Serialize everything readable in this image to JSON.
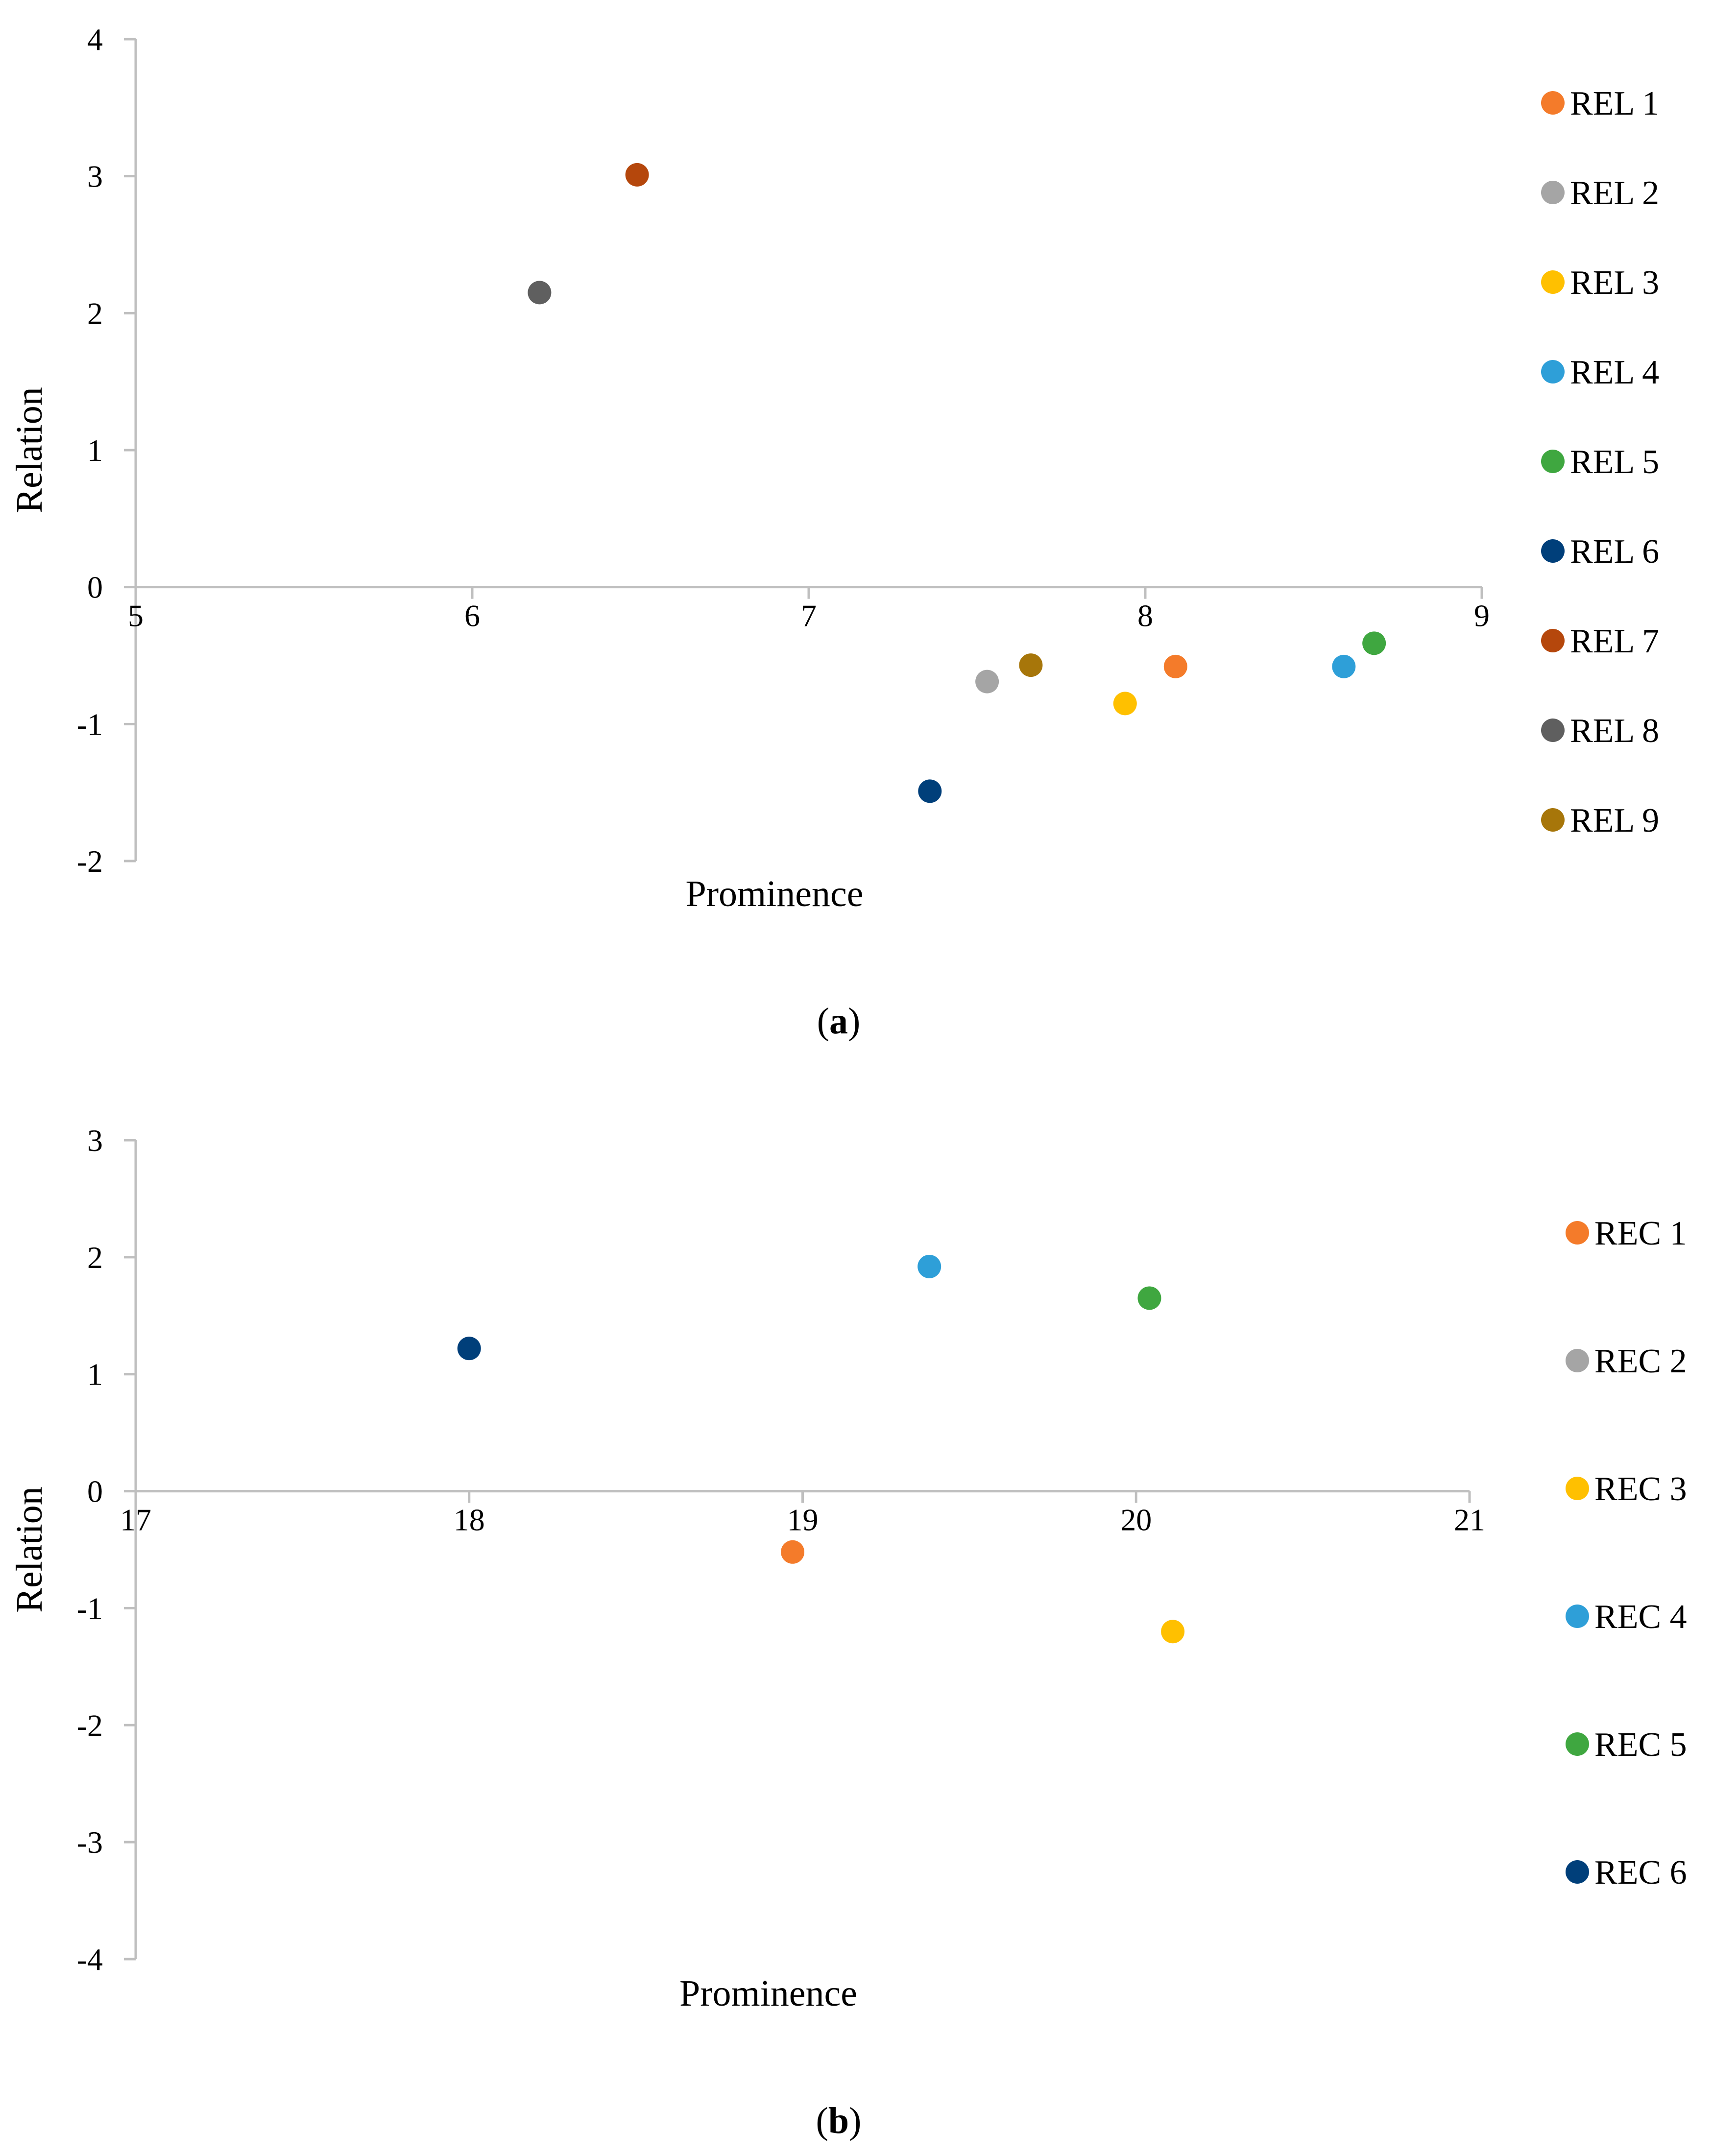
{
  "chart_data": [
    {
      "type": "scatter",
      "panel_label": "a",
      "xlabel": "Prominence",
      "ylabel": "Relation",
      "xlim": [
        5,
        9
      ],
      "ylim": [
        -2,
        4
      ],
      "xticks": [
        5,
        6,
        7,
        8,
        9
      ],
      "yticks": [
        -2,
        -1,
        0,
        1,
        2,
        3,
        4
      ],
      "grid": false,
      "legend_position": "right",
      "series": [
        {
          "name": "REL 1",
          "color": "#F47B2A",
          "x": 8.09,
          "y": -0.58
        },
        {
          "name": "REL 2",
          "color": "#A5A5A5",
          "x": 7.53,
          "y": -0.69
        },
        {
          "name": "REL 3",
          "color": "#FFC000",
          "x": 7.94,
          "y": -0.85
        },
        {
          "name": "REL 4",
          "color": "#2E9FD8",
          "x": 8.59,
          "y": -0.58
        },
        {
          "name": "REL 5",
          "color": "#3FA740",
          "x": 8.68,
          "y": -0.41
        },
        {
          "name": "REL 6",
          "color": "#003F7A",
          "x": 7.36,
          "y": -1.49
        },
        {
          "name": "REL 7",
          "color": "#B5470C",
          "x": 6.49,
          "y": 3.01
        },
        {
          "name": "REL 8",
          "color": "#5F5F5F",
          "x": 6.2,
          "y": 2.15
        },
        {
          "name": "REL 9",
          "color": "#A7760A",
          "x": 7.66,
          "y": -0.57
        }
      ]
    },
    {
      "type": "scatter",
      "panel_label": "b",
      "xlabel": "Prominence",
      "ylabel": "Relation",
      "xlim": [
        17,
        21
      ],
      "ylim": [
        -4,
        3
      ],
      "xticks": [
        17,
        18,
        19,
        20,
        21
      ],
      "yticks": [
        -4,
        -3,
        -2,
        -1,
        0,
        1,
        2,
        3
      ],
      "grid": false,
      "legend_position": "right",
      "series": [
        {
          "name": "REC 1",
          "color": "#F47B2A",
          "x": 18.97,
          "y": -0.52
        },
        {
          "name": "REC 2",
          "color": "#A5A5A5",
          "x": null,
          "y": null
        },
        {
          "name": "REC 3",
          "color": "#FFC000",
          "x": 20.11,
          "y": -1.2
        },
        {
          "name": "REC 4",
          "color": "#2E9FD8",
          "x": 19.38,
          "y": 1.92
        },
        {
          "name": "REC 5",
          "color": "#3FA740",
          "x": 20.04,
          "y": 1.65
        },
        {
          "name": "REC 6",
          "color": "#003F7A",
          "x": 18.0,
          "y": 1.22
        }
      ]
    }
  ]
}
